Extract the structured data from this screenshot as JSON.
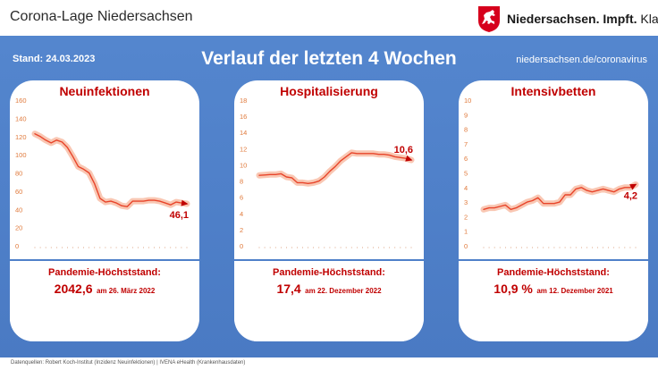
{
  "header": {
    "title": "Corona-Lage Niedersachsen",
    "brand_bold": "Niedersachsen. Impft.",
    "brand_light": "Klar."
  },
  "banner": {
    "stand": "Stand: 24.03.2023",
    "heading": "Verlauf der letzten 4 Wochen",
    "url": "niedersachsen.de/coronavirus"
  },
  "colors": {
    "accent": "#c00000",
    "panel_blue": "#4f80c9",
    "line": "#e8442a",
    "glow": "#f7b49a",
    "tick": "#e07a3c"
  },
  "chart_data": [
    {
      "type": "line",
      "title": "Neuinfektionen",
      "ylim": [
        0,
        160
      ],
      "yticks": [
        0,
        20,
        40,
        60,
        80,
        100,
        120,
        140,
        160
      ],
      "x": [
        1,
        2,
        3,
        4,
        5,
        6,
        7,
        8,
        9,
        10,
        11,
        12,
        13,
        14,
        15,
        16,
        17,
        18,
        19,
        20,
        21,
        22,
        23,
        24,
        25,
        26,
        27,
        28,
        29
      ],
      "values": [
        123,
        120,
        116,
        113,
        116,
        114,
        108,
        98,
        87,
        84,
        80,
        68,
        52,
        48,
        49,
        47,
        44,
        43,
        49,
        49,
        49,
        50,
        50,
        49,
        47,
        45,
        48,
        47,
        46.1
      ],
      "end_label": "46,1",
      "peak": {
        "label": "Pandemie-Höchststand:",
        "value": "2042,6",
        "date": "am 26. März 2022"
      }
    },
    {
      "type": "line",
      "title": "Hospitalisierung",
      "ylim": [
        0,
        18
      ],
      "yticks": [
        0,
        2,
        4,
        6,
        8,
        10,
        12,
        14,
        16,
        18
      ],
      "x": [
        1,
        2,
        3,
        4,
        5,
        6,
        7,
        8,
        9,
        10,
        11,
        12,
        13,
        14,
        15,
        16,
        17,
        18,
        19,
        20,
        21,
        22,
        23,
        24,
        25,
        26,
        27,
        28,
        29
      ],
      "values": [
        8.7,
        8.75,
        8.8,
        8.8,
        8.9,
        8.5,
        8.4,
        7.8,
        7.8,
        7.7,
        7.8,
        8.0,
        8.5,
        9.2,
        9.8,
        10.5,
        11.0,
        11.5,
        11.4,
        11.4,
        11.4,
        11.4,
        11.3,
        11.3,
        11.2,
        11.0,
        10.9,
        10.8,
        10.6
      ],
      "end_label": "10,6",
      "peak": {
        "label": "Pandemie-Höchststand:",
        "value": "17,4",
        "date": "am 22. Dezember 2022"
      }
    },
    {
      "type": "line",
      "title": "Intensivbetten",
      "ylim": [
        0,
        10
      ],
      "yticks": [
        0,
        1,
        2,
        3,
        4,
        5,
        6,
        7,
        8,
        9,
        10
      ],
      "x": [
        1,
        2,
        3,
        4,
        5,
        6,
        7,
        8,
        9,
        10,
        11,
        12,
        13,
        14,
        15,
        16,
        17,
        18,
        19,
        20,
        21,
        22,
        23,
        24,
        25,
        26,
        27,
        28,
        29
      ],
      "values": [
        2.5,
        2.6,
        2.6,
        2.7,
        2.8,
        2.5,
        2.6,
        2.8,
        3.0,
        3.1,
        3.3,
        2.9,
        2.9,
        2.9,
        3.0,
        3.5,
        3.5,
        3.9,
        4.0,
        3.8,
        3.7,
        3.8,
        3.9,
        3.8,
        3.7,
        3.9,
        4.0,
        4.0,
        4.2
      ],
      "end_label": "4,2",
      "peak": {
        "label": "Pandemie-Höchststand:",
        "value": "10,9 %",
        "date": "am 12. Dezember 2021"
      }
    }
  ],
  "footer": {
    "source": "Datenquellen: Robert Koch-Institut (Inzidenz Neuinfektionen) | IVENA eHealth (Krankenhausdaten)"
  }
}
